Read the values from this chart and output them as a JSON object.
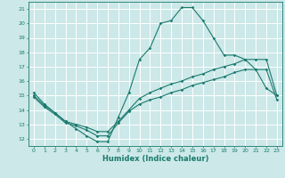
{
  "xlabel": "Humidex (Indice chaleur)",
  "xlim": [
    -0.5,
    23.5
  ],
  "ylim": [
    11.5,
    21.5
  ],
  "yticks": [
    12,
    13,
    14,
    15,
    16,
    17,
    18,
    19,
    20,
    21
  ],
  "xticks": [
    0,
    1,
    2,
    3,
    4,
    5,
    6,
    7,
    8,
    9,
    10,
    11,
    12,
    13,
    14,
    15,
    16,
    17,
    18,
    19,
    20,
    21,
    22,
    23
  ],
  "bg_color": "#cce8e8",
  "grid_color": "#ffffff",
  "line_color": "#1a7a6e",
  "line1_x": [
    0,
    1,
    2,
    3,
    4,
    5,
    6,
    7,
    8,
    9,
    10,
    11,
    12,
    13,
    14,
    15,
    16,
    17,
    18,
    19,
    20,
    21,
    22,
    23
  ],
  "line1_y": [
    15.2,
    14.4,
    13.8,
    13.2,
    12.7,
    12.2,
    11.8,
    11.8,
    13.5,
    15.2,
    17.5,
    18.3,
    20.0,
    20.2,
    21.1,
    21.1,
    20.2,
    19.0,
    17.8,
    17.8,
    17.5,
    16.8,
    15.5,
    15.0
  ],
  "line2_x": [
    0,
    1,
    2,
    3,
    4,
    5,
    6,
    7,
    8,
    9,
    10,
    11,
    12,
    13,
    14,
    15,
    16,
    17,
    18,
    19,
    20,
    21,
    22,
    23
  ],
  "line2_y": [
    15.0,
    14.3,
    13.8,
    13.2,
    13.0,
    12.8,
    12.5,
    12.5,
    13.2,
    14.0,
    14.8,
    15.2,
    15.5,
    15.8,
    16.0,
    16.3,
    16.5,
    16.8,
    17.0,
    17.2,
    17.5,
    17.5,
    17.5,
    15.0
  ],
  "line3_x": [
    0,
    1,
    2,
    3,
    4,
    5,
    6,
    7,
    8,
    9,
    10,
    11,
    12,
    13,
    14,
    15,
    16,
    17,
    18,
    19,
    20,
    21,
    22,
    23
  ],
  "line3_y": [
    14.9,
    14.2,
    13.7,
    13.1,
    12.9,
    12.6,
    12.2,
    12.2,
    13.1,
    13.9,
    14.4,
    14.7,
    14.9,
    15.2,
    15.4,
    15.7,
    15.9,
    16.1,
    16.3,
    16.6,
    16.8,
    16.8,
    16.8,
    14.7
  ]
}
